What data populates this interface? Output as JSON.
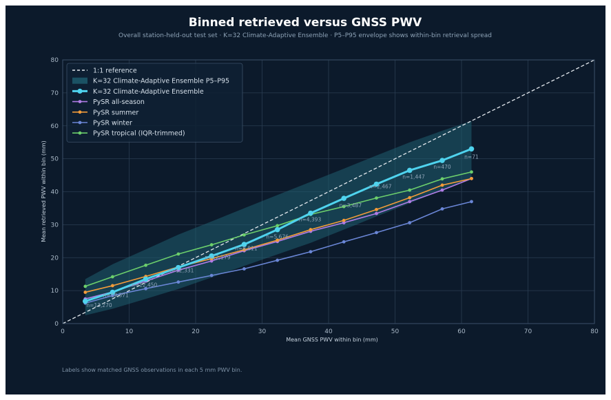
{
  "chart_data": {
    "type": "line",
    "title": "Binned retrieved versus GNSS PWV",
    "subtitle": "Overall station-held-out test set · K=32 Climate-Adaptive Ensemble · P5–P95 envelope shows within-bin retrieval spread",
    "xlabel": "Mean GNSS PWV within bin (mm)",
    "ylabel": "Mean retrieved PWV within bin (mm)",
    "xlim": [
      0,
      80
    ],
    "ylim": [
      0,
      80
    ],
    "xticks": [
      0,
      10,
      20,
      30,
      40,
      50,
      60,
      70,
      80
    ],
    "yticks": [
      0,
      10,
      20,
      30,
      40,
      50,
      60,
      70,
      80
    ],
    "grid": true,
    "legend_position": "top-left",
    "footnote": "Labels show matched GNSS observations in each 5 mm PWV bin.",
    "reference": {
      "name": "1:1 reference",
      "color": "#e6ebf0"
    },
    "x": [
      3.4,
      7.5,
      12.5,
      17.4,
      22.4,
      27.3,
      32.3,
      37.3,
      42.3,
      47.2,
      52.2,
      57.1,
      61.5
    ],
    "envelope": {
      "name": "K=32 Climate-Adaptive Ensemble P5–P95",
      "color": "#1f5f70",
      "lower": [
        2.5,
        4.5,
        7.5,
        10.5,
        14.0,
        17.5,
        21.0,
        24.5,
        28.5,
        32.5,
        36.5,
        40.5,
        44.0
      ],
      "upper": [
        13.5,
        18.0,
        22.5,
        27.0,
        31.0,
        35.0,
        39.0,
        43.0,
        47.0,
        51.0,
        55.0,
        58.5,
        61.5
      ]
    },
    "series": [
      {
        "name": "K=32 Climate-Adaptive Ensemble",
        "color": "#4fd3ee",
        "bold": true,
        "values": [
          6.8,
          9.5,
          13.5,
          17.0,
          20.5,
          24.0,
          28.5,
          33.5,
          38.0,
          42.3,
          46.5,
          49.5,
          53.0
        ]
      },
      {
        "name": "PySR all-season",
        "color": "#b07ce6",
        "values": [
          7.5,
          9.6,
          12.9,
          16.2,
          19.0,
          22.1,
          24.9,
          28.0,
          30.6,
          33.4,
          37.0,
          40.5,
          44.0
        ]
      },
      {
        "name": "PySR summer",
        "color": "#f39c3a",
        "values": [
          9.5,
          11.5,
          14.3,
          17.2,
          19.7,
          22.4,
          25.3,
          28.5,
          31.3,
          34.6,
          38.2,
          42.0,
          44.0
        ]
      },
      {
        "name": "PySR winter",
        "color": "#6a86d6",
        "values": [
          6.2,
          8.5,
          10.6,
          12.6,
          14.6,
          16.6,
          19.2,
          21.8,
          24.8,
          27.6,
          30.6,
          34.8,
          37.0
        ]
      },
      {
        "name": "PySR tropical (IQR-trimmed)",
        "color": "#6ccf6c",
        "values": [
          11.3,
          14.2,
          17.7,
          21.1,
          23.9,
          26.9,
          29.7,
          33.1,
          35.5,
          38.1,
          40.5,
          43.9,
          46.0
        ]
      }
    ],
    "annotations": [
      {
        "text": "n=13,270",
        "x": 5.5,
        "y": 5.0
      },
      {
        "text": "n=19,371",
        "x": 8.0,
        "y": 8.0
      },
      {
        "text": "n=12,450",
        "x": 12.3,
        "y": 11.2
      },
      {
        "text": "n=12,331",
        "x": 17.8,
        "y": 15.6
      },
      {
        "text": "n=12,179",
        "x": 23.3,
        "y": 19.5
      },
      {
        "text": "n=8,811",
        "x": 27.6,
        "y": 22.2
      },
      {
        "text": "n=5,676",
        "x": 32.3,
        "y": 25.8
      },
      {
        "text": "n=4,393",
        "x": 37.2,
        "y": 31.0
      },
      {
        "text": "n=3,487",
        "x": 43.3,
        "y": 35.3
      },
      {
        "text": "n=2,467",
        "x": 47.8,
        "y": 41.0
      },
      {
        "text": "n=1,447",
        "x": 52.8,
        "y": 44.0
      },
      {
        "text": "n=470",
        "x": 57.1,
        "y": 47.0
      },
      {
        "text": "n=71",
        "x": 61.5,
        "y": 50.0
      }
    ]
  }
}
